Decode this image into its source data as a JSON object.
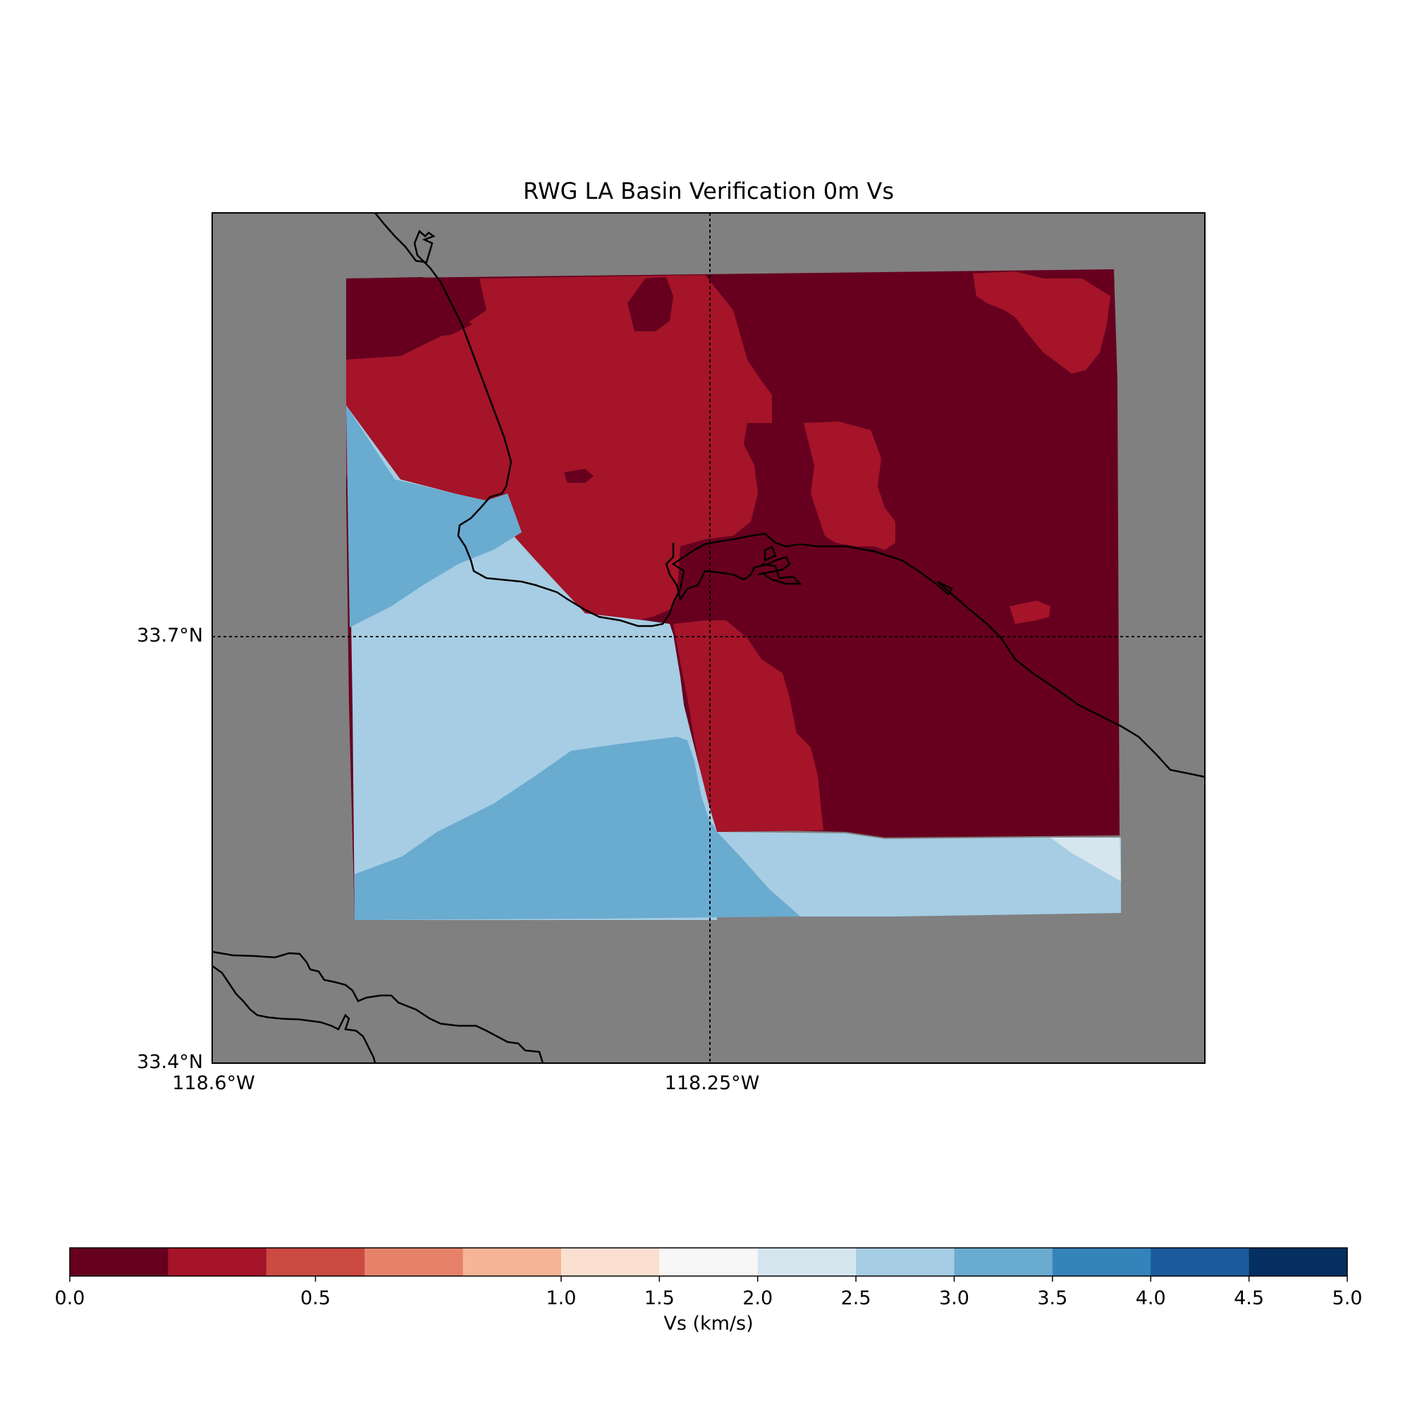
{
  "title": "RWG LA Basin Verification 0m Vs",
  "map": {
    "lon_range": [
      -118.6,
      -117.85
    ],
    "lat_range": [
      33.4,
      34.0
    ],
    "lat_ticks": [
      {
        "value": 33.7,
        "label": "33.7°N"
      },
      {
        "value": 33.4,
        "label": "33.4°N"
      }
    ],
    "lon_ticks": [
      {
        "value": -118.6,
        "label": "118.6°W"
      },
      {
        "value": -118.25,
        "label": "118.25°W"
      }
    ],
    "background_color": "#808080",
    "coastline_color": "#000000"
  },
  "colorbar": {
    "label": "Vs (km/s)",
    "range": [
      0.0,
      5.0
    ],
    "bins": [
      {
        "color": "#67001f"
      },
      {
        "color": "#a51429"
      },
      {
        "color": "#cb4a42"
      },
      {
        "color": "#e6826a"
      },
      {
        "color": "#f6b596"
      },
      {
        "color": "#fbe0d1"
      },
      {
        "color": "#f7f7f7"
      },
      {
        "color": "#d6e6ef"
      },
      {
        "color": "#a6cde3"
      },
      {
        "color": "#6aabd0"
      },
      {
        "color": "#3583bb"
      },
      {
        "color": "#1b5b9c"
      },
      {
        "color": "#053061"
      }
    ],
    "ticks": [
      {
        "label": "0.0"
      },
      {
        "label": "0.5"
      },
      {
        "label": "1.0"
      },
      {
        "label": "1.5"
      },
      {
        "label": "2.0"
      },
      {
        "label": "2.5"
      },
      {
        "label": "3.0"
      },
      {
        "label": "3.5"
      },
      {
        "label": "4.0"
      },
      {
        "label": "4.5"
      },
      {
        "label": "5.0"
      }
    ]
  },
  "colors": {
    "vs_lt_0_2": "#67001f",
    "vs_0_2_0_4": "#a51429",
    "vs_2_5_3_0": "#a6cde3",
    "vs_3_0_3_5": "#6aabd0",
    "vs_2_0_2_5": "#d6e6ef"
  }
}
